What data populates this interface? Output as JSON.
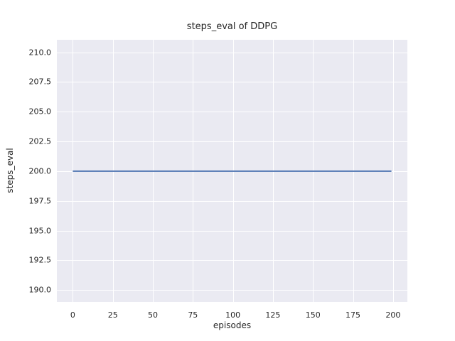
{
  "chart_data": {
    "type": "line",
    "title": "steps_eval of DDPG",
    "xlabel": "episodes",
    "ylabel": "steps_eval",
    "x_ticks": [
      0,
      25,
      50,
      75,
      100,
      125,
      150,
      175,
      200
    ],
    "y_ticks": [
      190.0,
      192.5,
      195.0,
      197.5,
      200.0,
      202.5,
      205.0,
      207.5,
      210.0
    ],
    "y_tick_decimals": 1,
    "xlim": [
      -9.95,
      208.95
    ],
    "ylim": [
      189.0,
      211.05
    ],
    "grid": true,
    "legend": false,
    "plot_background": "#eaeaf2",
    "grid_color": "#ffffff",
    "text_color": "#262626",
    "series": [
      {
        "name": "DDPG steps_eval",
        "color": "#4c72b0",
        "linewidth": 1.8,
        "x": [
          0,
          199
        ],
        "y": [
          200.0,
          200.0
        ]
      }
    ]
  }
}
